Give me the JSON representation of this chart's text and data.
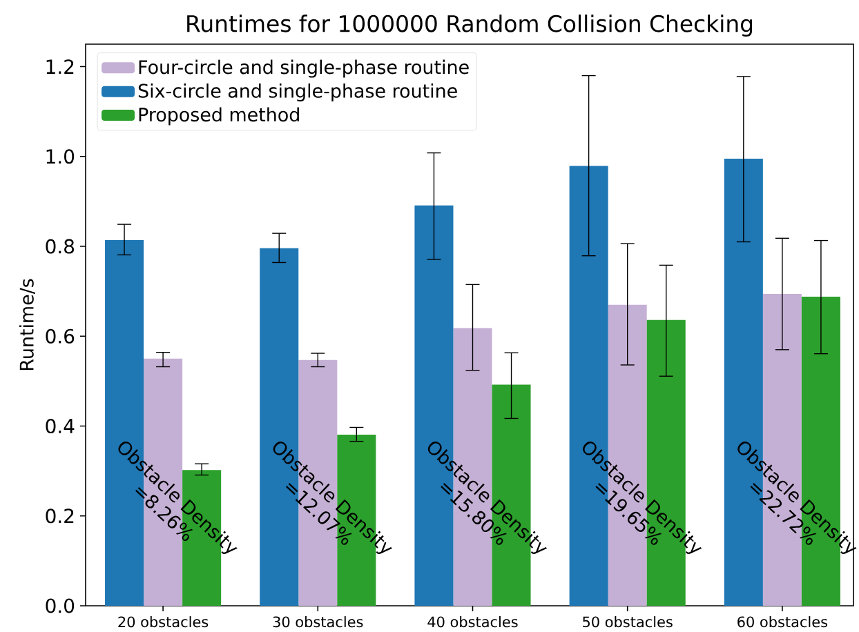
{
  "chart_data": {
    "type": "bar",
    "title": "Runtimes for 1000000 Random Collision Checking",
    "ylabel": "Runtime/s",
    "categories": [
      "20 obstacles",
      "30 obstacles",
      "40 obstacles",
      "50 obstacles",
      "60 obstacles"
    ],
    "series": [
      {
        "name": "Four-circle and single-phase routine",
        "color": "#c5b0d5",
        "values": [
          0.55,
          0.547,
          0.618,
          0.67,
          0.694
        ],
        "errors": [
          [
            0.532,
            0.564
          ],
          [
            0.532,
            0.562
          ],
          [
            0.524,
            0.715
          ],
          [
            0.536,
            0.806
          ],
          [
            0.57,
            0.818
          ]
        ]
      },
      {
        "name": "Six-circle and single-phase routine",
        "color": "#1f77b4",
        "values": [
          0.814,
          0.796,
          0.891,
          0.979,
          0.995
        ],
        "errors": [
          [
            0.781,
            0.849
          ],
          [
            0.764,
            0.829
          ],
          [
            0.771,
            1.008
          ],
          [
            0.779,
            1.18
          ],
          [
            0.81,
            1.178
          ]
        ]
      },
      {
        "name": "Proposed method",
        "color": "#2ca02c",
        "values": [
          0.302,
          0.381,
          0.492,
          0.636,
          0.688
        ],
        "errors": [
          [
            0.291,
            0.316
          ],
          [
            0.366,
            0.397
          ],
          [
            0.417,
            0.563
          ],
          [
            0.511,
            0.758
          ],
          [
            0.561,
            0.813
          ]
        ]
      }
    ],
    "ylim": [
      0,
      1.25
    ],
    "yticks": [
      {
        "value": 0,
        "label": "0.0"
      },
      {
        "value": 0.2,
        "label": "0.2"
      },
      {
        "value": 0.4,
        "label": "0.4"
      },
      {
        "value": 0.6,
        "label": "0.6"
      },
      {
        "value": 0.8,
        "label": "0.8"
      },
      {
        "value": 1.0,
        "label": "1.0"
      },
      {
        "value": 1.2,
        "label": "1.2"
      }
    ],
    "legend": "top left",
    "grid": false,
    "annotations": [
      "Obstacle Density",
      "=8.26%",
      "Obstacle Density",
      "=12.07%",
      "Obstacle Density",
      "=15.80%",
      "Obstacle Density",
      "=19.65%",
      "Obstacle Density",
      "=22.72%"
    ]
  }
}
